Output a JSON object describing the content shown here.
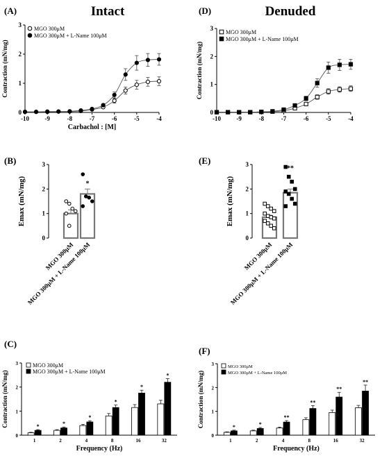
{
  "headers": {
    "left": "Intact",
    "right": "Denuded"
  },
  "chart_data": [
    {
      "panel": "(A)",
      "type": "line",
      "xlabel": "Carbachol : [M]",
      "ylabel": "Contraction (mN/mg)",
      "xlim": [
        -10,
        -4
      ],
      "ylim": [
        0,
        3
      ],
      "xticks": [
        -10,
        -9,
        -8,
        -7,
        -6,
        -5,
        -4
      ],
      "yticks": [
        0,
        1,
        2,
        3
      ],
      "legend": "top-left",
      "series": [
        {
          "name": "MGO 300μM",
          "marker": "open-circle",
          "x": [
            -10,
            -9.5,
            -9,
            -8.5,
            -8,
            -7.5,
            -7,
            -6.5,
            -6,
            -5.5,
            -5,
            -4.5,
            -4
          ],
          "y": [
            0.02,
            0.02,
            0.02,
            0.03,
            0.03,
            0.05,
            0.1,
            0.18,
            0.4,
            0.75,
            0.95,
            1.05,
            1.07
          ],
          "err": [
            0,
            0,
            0,
            0,
            0,
            0,
            0.02,
            0.04,
            0.08,
            0.12,
            0.15,
            0.15,
            0.15
          ]
        },
        {
          "name": "MGO 300μM + L-Name 100μM",
          "marker": "filled-circle",
          "x": [
            -10,
            -9.5,
            -9,
            -8.5,
            -8,
            -7.5,
            -7,
            -6.5,
            -6,
            -5.5,
            -5,
            -4.5,
            -4
          ],
          "y": [
            0.02,
            0.02,
            0.03,
            0.03,
            0.04,
            0.07,
            0.12,
            0.25,
            0.6,
            1.3,
            1.7,
            1.8,
            1.82
          ],
          "err": [
            0,
            0,
            0,
            0,
            0,
            0.02,
            0.03,
            0.05,
            0.1,
            0.2,
            0.25,
            0.22,
            0.2
          ]
        }
      ]
    },
    {
      "panel": "(D)",
      "type": "line",
      "xlabel": "",
      "ylabel": "Contraction (mN/mg)",
      "xlim": [
        -10,
        -4
      ],
      "ylim": [
        0,
        3
      ],
      "xticks": [
        -10,
        -9,
        -8,
        -7,
        -6,
        -5,
        -4
      ],
      "yticks": [
        0,
        1,
        2,
        3
      ],
      "legend": "top-left",
      "series": [
        {
          "name": "MGO 300μM",
          "marker": "open-square",
          "x": [
            -10,
            -9.5,
            -9,
            -8.5,
            -8,
            -7.5,
            -7,
            -6.5,
            -6,
            -5.5,
            -5,
            -4.5,
            -4
          ],
          "y": [
            0.01,
            0.01,
            0.01,
            0.01,
            0.02,
            0.03,
            0.06,
            0.15,
            0.3,
            0.55,
            0.75,
            0.82,
            0.85
          ],
          "err": [
            0,
            0,
            0,
            0,
            0,
            0,
            0.02,
            0.03,
            0.05,
            0.08,
            0.1,
            0.1,
            0.1
          ]
        },
        {
          "name": "MGO 300μM + L-Name 100μM",
          "marker": "filled-square",
          "x": [
            -10,
            -9.5,
            -9,
            -8.5,
            -8,
            -7.5,
            -7,
            -6.5,
            -6,
            -5.5,
            -5,
            -4.5,
            -4
          ],
          "y": [
            0.01,
            0.01,
            0.01,
            0.01,
            0.02,
            0.04,
            0.1,
            0.25,
            0.5,
            1.05,
            1.6,
            1.7,
            1.72
          ],
          "err": [
            0,
            0,
            0,
            0,
            0,
            0.01,
            0.03,
            0.05,
            0.08,
            0.15,
            0.2,
            0.2,
            0.18
          ]
        }
      ]
    },
    {
      "panel": "(B)",
      "type": "bar",
      "ylabel": "Emax (mN/mg)",
      "ylim": [
        0,
        3
      ],
      "yticks": [
        0,
        1,
        2,
        3
      ],
      "categories": [
        "MGO 300μM",
        "MGO 300μM + L-Name 100μM"
      ],
      "values": [
        1.0,
        1.8
      ],
      "err": [
        0.15,
        0.2
      ],
      "points": [
        {
          "marker": "open-circle",
          "values": [
            1.5,
            1.4,
            1.2,
            1.1,
            1.0,
            0.5
          ]
        },
        {
          "marker": "filled-circle",
          "values": [
            2.6,
            1.7,
            1.65,
            1.5,
            1.3
          ]
        }
      ],
      "annotations": [
        "",
        "*"
      ]
    },
    {
      "panel": "(E)",
      "type": "bar",
      "ylabel": "Emax (mN/mg)",
      "ylim": [
        0,
        3
      ],
      "yticks": [
        0,
        1,
        2,
        3
      ],
      "categories": [
        "MGO 300μM",
        "MGO 300μM + L-Name 100μM"
      ],
      "values": [
        0.85,
        1.85
      ],
      "err": [
        0.08,
        0.15
      ],
      "points": [
        {
          "marker": "open-square",
          "values": [
            1.4,
            1.3,
            1.2,
            1.1,
            1.0,
            0.9,
            0.85,
            0.8,
            0.7,
            0.6,
            0.5,
            0.4
          ]
        },
        {
          "marker": "filled-square",
          "values": [
            2.9,
            2.5,
            2.3,
            2.0,
            1.9,
            1.8,
            1.6,
            1.4,
            1.3
          ]
        }
      ],
      "annotations": [
        "",
        "**"
      ]
    },
    {
      "panel": "(C)",
      "type": "bar",
      "xlabel": "Frequency (Hz)",
      "ylabel": "Contraction (mN/mg)",
      "ylim": [
        0,
        3
      ],
      "yticks": [
        0,
        1,
        2,
        3
      ],
      "legend": "top-left",
      "categories": [
        "1",
        "2",
        "4",
        "8",
        "16",
        "32"
      ],
      "series": [
        {
          "name": "MGO 300μM",
          "fill": "open",
          "values": [
            0.1,
            0.2,
            0.4,
            0.8,
            1.15,
            1.3
          ],
          "err": [
            0.02,
            0.03,
            0.05,
            0.1,
            0.12,
            0.15
          ]
        },
        {
          "name": "MGO 300μM + L-Name 100μM",
          "fill": "filled",
          "values": [
            0.2,
            0.3,
            0.55,
            1.15,
            1.75,
            2.2
          ],
          "err": [
            0.03,
            0.04,
            0.05,
            0.1,
            0.12,
            0.15
          ]
        }
      ],
      "annotations": [
        "*",
        "*",
        "*",
        "*",
        "*",
        "*"
      ]
    },
    {
      "panel": "(F)",
      "type": "bar",
      "xlabel": "Frequency (Hz)",
      "ylabel": "Contraction (mN/mg)",
      "ylim": [
        0,
        3
      ],
      "yticks": [
        0,
        1,
        2,
        3
      ],
      "legend": "top-left",
      "categories": [
        "1",
        "2",
        "4",
        "8",
        "16",
        "32"
      ],
      "series": [
        {
          "name": "MGO 300μM",
          "fill": "open",
          "values": [
            0.12,
            0.18,
            0.3,
            0.65,
            0.95,
            1.15
          ],
          "err": [
            0.02,
            0.03,
            0.04,
            0.08,
            0.1,
            0.1
          ]
        },
        {
          "name": "MGO 300μM + L-Name 100μM",
          "fill": "filled",
          "values": [
            0.18,
            0.28,
            0.55,
            1.12,
            1.6,
            1.85
          ],
          "err": [
            0.03,
            0.04,
            0.06,
            0.12,
            0.2,
            0.25
          ]
        }
      ],
      "annotations": [
        "*",
        "*",
        "**",
        "**",
        "**",
        "**"
      ]
    }
  ]
}
